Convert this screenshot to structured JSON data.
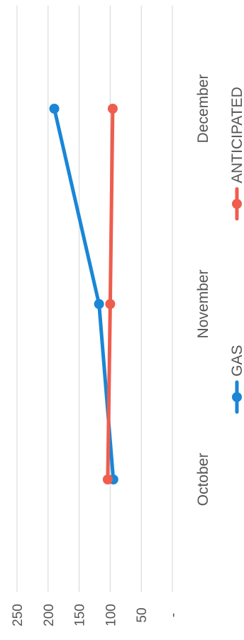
{
  "chart_data": {
    "type": "line",
    "orientation": "rotated-90",
    "categories": [
      "October",
      "November",
      "December"
    ],
    "series": [
      {
        "name": "GAS",
        "values": [
          95,
          118,
          190
        ],
        "color": "#1a86d6"
      },
      {
        "name": "ANTICIPATED",
        "values": [
          104,
          100,
          96
        ],
        "color": "#ee5d4e"
      }
    ],
    "y_ticks": [
      {
        "value": 250,
        "label": "250"
      },
      {
        "value": 200,
        "label": "200"
      },
      {
        "value": 150,
        "label": "150"
      },
      {
        "value": 100,
        "label": "100"
      },
      {
        "value": 50,
        "label": "50"
      },
      {
        "value": 0,
        "label": "-"
      }
    ],
    "ylim": [
      0,
      250
    ],
    "grid": true,
    "legend_position": "bottom",
    "title": "",
    "xlabel": "",
    "ylabel": ""
  },
  "colors": {
    "gridline": "#d4d4d4",
    "text": "#555555"
  }
}
